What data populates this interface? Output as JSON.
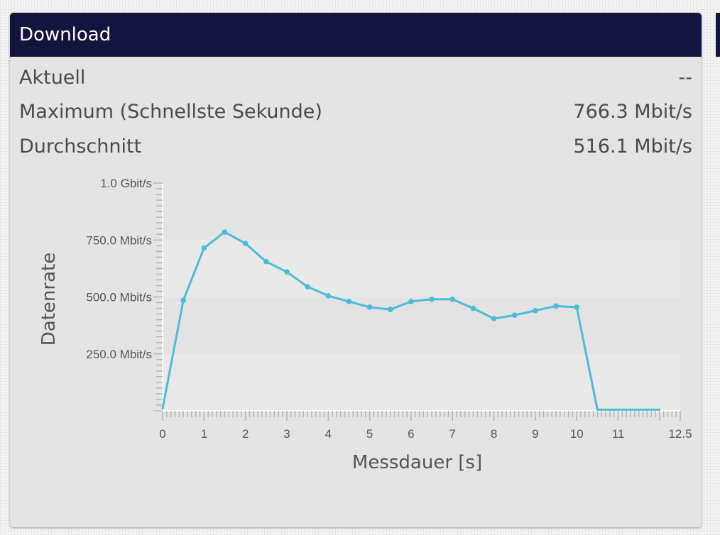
{
  "panel": {
    "title": "Download"
  },
  "stats": [
    {
      "label": "Aktuell",
      "value": "--"
    },
    {
      "label": "Maximum (Schnellste Sekunde)",
      "value": "766.3 Mbit/s"
    },
    {
      "label": "Durchschnitt",
      "value": "516.1 Mbit/s"
    }
  ],
  "colors": {
    "header": "#13153f",
    "panel": "#e4e4e4",
    "line": "#4dbcd8",
    "text": "#4a4a4a"
  },
  "chart_data": {
    "type": "line",
    "xlabel": "Messdauer [s]",
    "ylabel": "Datenrate",
    "xlim": [
      0,
      12.5
    ],
    "ylim": [
      0,
      1000
    ],
    "x_ticks": [
      "0",
      "1",
      "2",
      "3",
      "4",
      "5",
      "6",
      "7",
      "8",
      "9",
      "10",
      "11",
      "12.5"
    ],
    "y_ticks": [
      {
        "value": 250,
        "label": "250.0 Mbit/s"
      },
      {
        "value": 500,
        "label": "500.0 Mbit/s"
      },
      {
        "value": 750,
        "label": "750.0 Mbit/s"
      },
      {
        "value": 1000,
        "label": "1.0 Gbit/s"
      }
    ],
    "series": [
      {
        "x": [
          0,
          0.5,
          1,
          1.5,
          2,
          2.5,
          3,
          3.5,
          4,
          4.5,
          5,
          5.5,
          6,
          6.5,
          7,
          7.5,
          8,
          8.5,
          9,
          9.5,
          10,
          10.5,
          12
        ],
        "values": [
          10,
          485,
          715,
          785,
          735,
          655,
          610,
          545,
          505,
          480,
          455,
          445,
          480,
          490,
          490,
          450,
          405,
          420,
          440,
          460,
          455,
          5,
          5
        ],
        "markers": [
          false,
          true,
          true,
          true,
          true,
          true,
          true,
          true,
          true,
          true,
          true,
          true,
          true,
          true,
          true,
          true,
          true,
          true,
          true,
          true,
          true,
          false,
          false
        ]
      }
    ],
    "grid": "alternating bands"
  }
}
